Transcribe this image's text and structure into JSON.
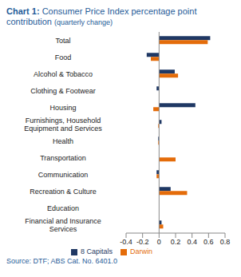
{
  "chart_data": {
    "type": "bar",
    "orientation": "horizontal",
    "title": "Chart 1: Consumer Price Index percentage point contribution",
    "subtitle": "(quarterly change)",
    "source": "Source: DTF; ABS Cat. No. 6401.0",
    "categories": [
      "Total",
      "Food",
      "Alcohol & Tobacco",
      "Clothing & Footwear",
      "Housing",
      "Furnishings, Household Equipment and Services",
      "Health",
      "Transportation",
      "Communication",
      "Recreation & Culture",
      "Education",
      "Financial and Insurance Services"
    ],
    "series": [
      {
        "name": "8 Capitals",
        "color": "#1F3864",
        "values": [
          0.62,
          -0.15,
          0.19,
          -0.03,
          0.44,
          0.03,
          -0.01,
          0.0,
          -0.03,
          0.14,
          0.0,
          0.03
        ]
      },
      {
        "name": "Darwin",
        "color": "#E46C0A",
        "values": [
          0.59,
          -0.1,
          0.23,
          0.0,
          -0.07,
          -0.01,
          -0.01,
          0.2,
          -0.03,
          0.34,
          0.0,
          0.05
        ]
      }
    ],
    "xlim": [
      -0.4,
      0.8
    ],
    "xticks": [
      -0.4,
      -0.2,
      0,
      0.2,
      0.4,
      0.6,
      0.8
    ],
    "grid": false,
    "legend": "bottom"
  }
}
